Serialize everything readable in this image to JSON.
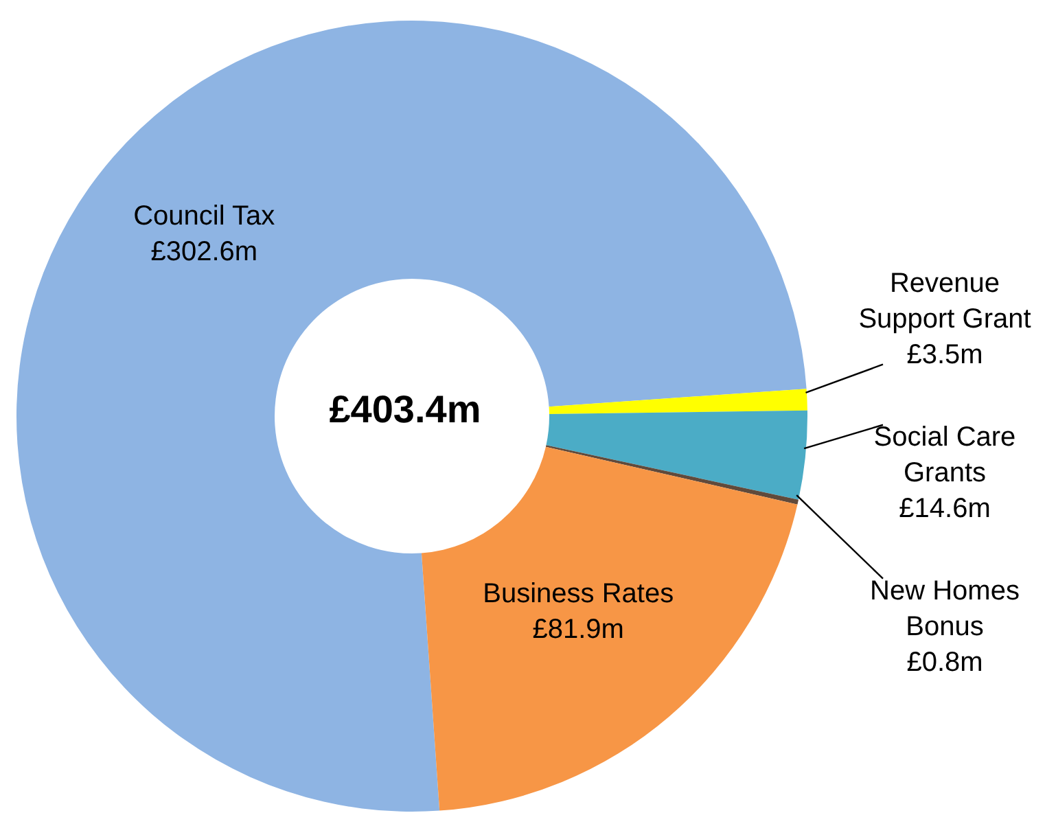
{
  "chart_data": {
    "type": "donut",
    "title": "£403.4m",
    "categories": [
      "Council Tax",
      "Revenue Support Grant",
      "Social Care Grants",
      "New Homes Bonus",
      "Business Rates"
    ],
    "values": [
      302.6,
      3.5,
      14.6,
      0.8,
      81.9
    ],
    "value_labels": [
      "£302.6m",
      "£3.5m",
      "£14.6m",
      "£0.8m",
      "£81.9m"
    ],
    "colors": [
      "#8eb4e3",
      "#ffff00",
      "#4bacc6",
      "#604a3b",
      "#f79646"
    ],
    "legend": false
  }
}
